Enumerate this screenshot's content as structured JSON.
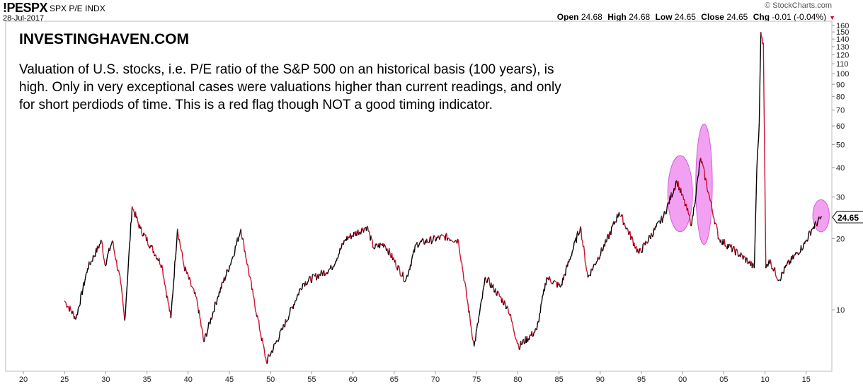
{
  "header": {
    "symbol": "!PESPX",
    "name": "SPX P/E INDX",
    "date": "28-Jul-2017",
    "copyright": "© StockCharts.com",
    "open_label": "Open",
    "open": "24.68",
    "high_label": "High",
    "high": "24.68",
    "low_label": "Low",
    "low": "24.65",
    "close_label": "Close",
    "close": "24.65",
    "chg_label": "Chg",
    "chg": "-0.01 (-0.04%)"
  },
  "annotation": {
    "brand": "INVESTINGHAVEN.COM",
    "text": "Valuation of U.S. stocks, i.e. P/E ratio of the S&P 500 on an historical basis (100 years), is high. Only in very exceptional cases were valuations higher than current readings, and only for short perdiods of time. This is a red flag though NOT a good timing indicator."
  },
  "colors": {
    "up": "#000000",
    "down": "#c8102e",
    "highlight": "#ee82ee"
  },
  "chart_data": {
    "type": "line",
    "title": "!PESPX SPX P/E INDX",
    "yscale": "log",
    "ylim": [
      5.8,
      165
    ],
    "xlim": [
      1918,
      2018.5
    ],
    "ytick_labels": [
      "160",
      "150",
      "140",
      "130",
      "120",
      "110",
      "100",
      "90",
      "80",
      "70",
      "60",
      "50",
      "40",
      "30",
      "20",
      "10"
    ],
    "yticks": [
      160,
      150,
      140,
      130,
      120,
      110,
      100,
      90,
      80,
      70,
      60,
      50,
      40,
      30,
      20,
      10
    ],
    "xtick_labels": [
      "20",
      "25",
      "30",
      "35",
      "40",
      "45",
      "50",
      "55",
      "60",
      "65",
      "70",
      "75",
      "80",
      "85",
      "90",
      "95",
      "00",
      "05",
      "10",
      "15"
    ],
    "xticks": [
      1920,
      1925,
      1930,
      1935,
      1940,
      1945,
      1950,
      1955,
      1960,
      1965,
      1970,
      1975,
      1980,
      1985,
      1990,
      1995,
      2000,
      2005,
      2010,
      2015
    ],
    "last_value_label": "24.65",
    "highlights": [
      {
        "x": 1999.7,
        "y": 31,
        "rx_years": 1.5,
        "ry_ratio": 1.45
      },
      {
        "x": 2002.6,
        "y": 34,
        "rx_years": 1.0,
        "ry_ratio": 1.8
      },
      {
        "x": 2016.8,
        "y": 25,
        "rx_years": 1.0,
        "ry_ratio": 1.17
      }
    ],
    "points": [
      [
        1925.0,
        10.9
      ],
      [
        1926.4,
        9.2
      ],
      [
        1927.8,
        15
      ],
      [
        1929.5,
        19.6
      ],
      [
        1929.9,
        15.5
      ],
      [
        1930.8,
        19.6
      ],
      [
        1931.8,
        13
      ],
      [
        1932.3,
        9
      ],
      [
        1933.2,
        27.4
      ],
      [
        1934.2,
        22
      ],
      [
        1935.5,
        18.5
      ],
      [
        1936.8,
        15.5
      ],
      [
        1937.9,
        9.2
      ],
      [
        1938.7,
        22
      ],
      [
        1939.5,
        15.3
      ],
      [
        1941.1,
        10.8
      ],
      [
        1941.9,
        7.3
      ],
      [
        1943.6,
        11.4
      ],
      [
        1945.3,
        16.3
      ],
      [
        1946.4,
        22
      ],
      [
        1947.9,
        11.4
      ],
      [
        1949.5,
        6.0
      ],
      [
        1951.4,
        8.2
      ],
      [
        1953.9,
        12.9
      ],
      [
        1957.4,
        15
      ],
      [
        1959.1,
        19.9
      ],
      [
        1961.7,
        22.5
      ],
      [
        1962.5,
        18.3
      ],
      [
        1963.8,
        19
      ],
      [
        1966.4,
        13.3
      ],
      [
        1967.7,
        19
      ],
      [
        1971.1,
        20.4
      ],
      [
        1972.8,
        19.6
      ],
      [
        1974.7,
        7.0
      ],
      [
        1976.1,
        13.7
      ],
      [
        1978.8,
        10.2
      ],
      [
        1980.1,
        7.0
      ],
      [
        1982.3,
        8.2
      ],
      [
        1983.5,
        13.7
      ],
      [
        1985.2,
        12.5
      ],
      [
        1987.6,
        22.5
      ],
      [
        1988.5,
        13.7
      ],
      [
        1990.8,
        19.6
      ],
      [
        1992.3,
        25.9
      ],
      [
        1994.7,
        17.3
      ],
      [
        1997.7,
        24.8
      ],
      [
        1999.3,
        35.2
      ],
      [
        2000.7,
        25.5
      ],
      [
        2001.1,
        23
      ],
      [
        2002.2,
        44
      ],
      [
        2003.3,
        29.5
      ],
      [
        2004.4,
        20
      ],
      [
        2008.0,
        16
      ],
      [
        2008.7,
        15
      ],
      [
        2009.0,
        39
      ],
      [
        2009.3,
        62
      ],
      [
        2009.5,
        150
      ],
      [
        2009.8,
        135
      ],
      [
        2010.1,
        15
      ],
      [
        2010.5,
        16.3
      ],
      [
        2011.7,
        13.4
      ],
      [
        2012.6,
        15.3
      ],
      [
        2014.8,
        19
      ],
      [
        2015.7,
        22
      ],
      [
        2016.9,
        24.65
      ]
    ]
  }
}
